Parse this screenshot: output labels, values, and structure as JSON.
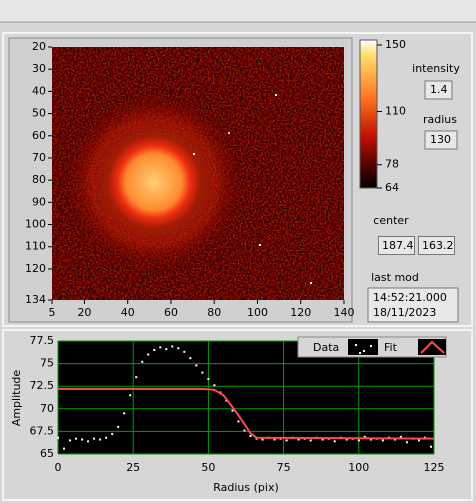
{
  "image_plot": {
    "xlim": [
      5,
      140
    ],
    "xticks": [
      5,
      20,
      40,
      60,
      80,
      100,
      120,
      140
    ],
    "ylim": [
      20,
      134
    ],
    "yticks": [
      20,
      30,
      40,
      50,
      60,
      70,
      80,
      90,
      100,
      110,
      120,
      134
    ],
    "colorbar": {
      "clim": [
        64,
        150
      ],
      "ticks": [
        150,
        110,
        78,
        64
      ]
    }
  },
  "controls": {
    "intensity": {
      "label": "intensity",
      "value": "1.4"
    },
    "radius": {
      "label": "radius",
      "value": "130"
    },
    "center": {
      "label": "center",
      "values": [
        "187.4",
        "163.2"
      ]
    },
    "last_mod": {
      "label": "last mod",
      "lines": [
        "14:52:21.000",
        "18/11/2023"
      ]
    }
  },
  "chart_data": {
    "type": "scatter",
    "xlabel": "Radius (pix)",
    "ylabel": "Amplitude",
    "xlim": [
      0,
      125
    ],
    "ylim": [
      65,
      77.5
    ],
    "xticks": [
      0,
      25,
      50,
      75,
      100,
      125
    ],
    "yticks": [
      65,
      67.5,
      70,
      72.5,
      75,
      77.5
    ],
    "grid": true,
    "grid_color": "#00a000",
    "series": [
      {
        "name": "Data",
        "color": "#ffffff",
        "mode": "markers",
        "x": [
          0,
          2,
          4,
          6,
          8,
          10,
          12,
          14,
          16,
          18,
          20,
          22,
          24,
          26,
          28,
          30,
          32,
          34,
          36,
          38,
          40,
          42,
          44,
          46,
          48,
          50,
          52,
          54,
          56,
          58,
          60,
          62,
          64,
          66,
          68,
          70,
          72,
          74,
          76,
          78,
          80,
          82,
          84,
          86,
          88,
          90,
          92,
          94,
          96,
          98,
          100,
          102,
          104,
          106,
          108,
          110,
          112,
          114,
          116,
          118,
          120,
          122,
          124
        ],
        "values": [
          66.8,
          65.6,
          66.5,
          66.7,
          66.6,
          66.4,
          66.7,
          66.6,
          66.8,
          67.2,
          68.0,
          69.5,
          71.5,
          73.5,
          75.2,
          76.0,
          76.5,
          76.8,
          76.6,
          76.9,
          76.7,
          76.3,
          75.6,
          74.8,
          74.0,
          73.3,
          72.6,
          71.8,
          70.9,
          69.8,
          68.6,
          67.6,
          67.0,
          66.7,
          66.6,
          66.8,
          66.6,
          66.7,
          66.5,
          66.8,
          66.6,
          66.7,
          66.5,
          66.8,
          66.6,
          66.7,
          66.4,
          66.8,
          66.6,
          66.7,
          66.5,
          66.9,
          66.6,
          66.7,
          66.5,
          66.8,
          66.6,
          66.9,
          66.3,
          66.7,
          66.5,
          66.8,
          65.8
        ]
      },
      {
        "name": "Fit",
        "color": "#ff4a4a",
        "mode": "line",
        "x": [
          0,
          48,
          52,
          55,
          58,
          61,
          64,
          66,
          125
        ],
        "values": [
          72.2,
          72.2,
          72.1,
          71.5,
          70.2,
          68.8,
          67.3,
          66.8,
          66.7
        ]
      }
    ]
  }
}
